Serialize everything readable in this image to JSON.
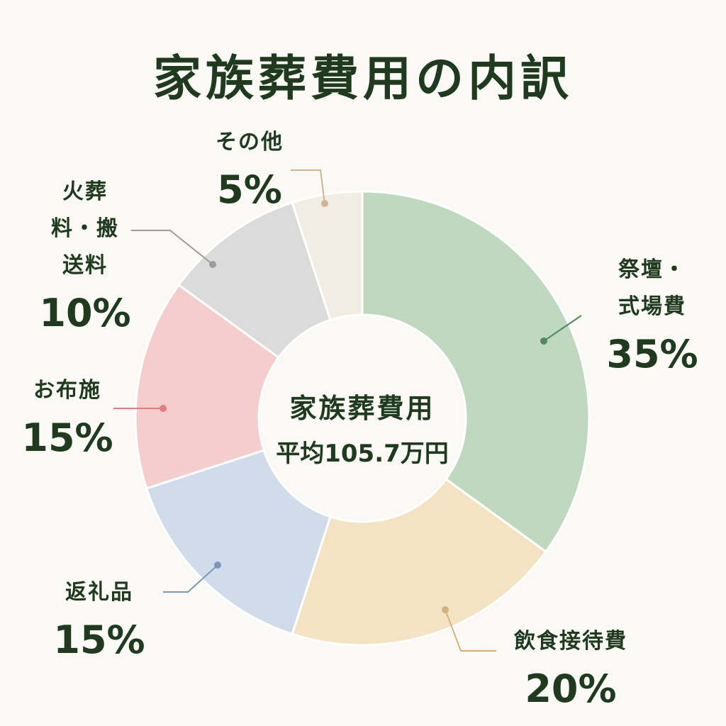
{
  "chart_data": {
    "type": "donut",
    "title": "家族葬費用の内訳",
    "center_title": "家族葬費用",
    "center_subtitle": "平均105.7万円",
    "categories": [
      "祭壇・式場費",
      "飲食接待費",
      "返礼品",
      "お布施",
      "火葬料・搬送料",
      "その他"
    ],
    "values": [
      35,
      20,
      15,
      15,
      10,
      5
    ],
    "value_labels": [
      "35%",
      "20%",
      "15%",
      "15%",
      "10%",
      "5%"
    ],
    "colors": [
      "#bfd8bf",
      "#f5e2c3",
      "#d0dcea",
      "#f5cdcd",
      "#dcdbdb",
      "#f2ede4"
    ]
  }
}
